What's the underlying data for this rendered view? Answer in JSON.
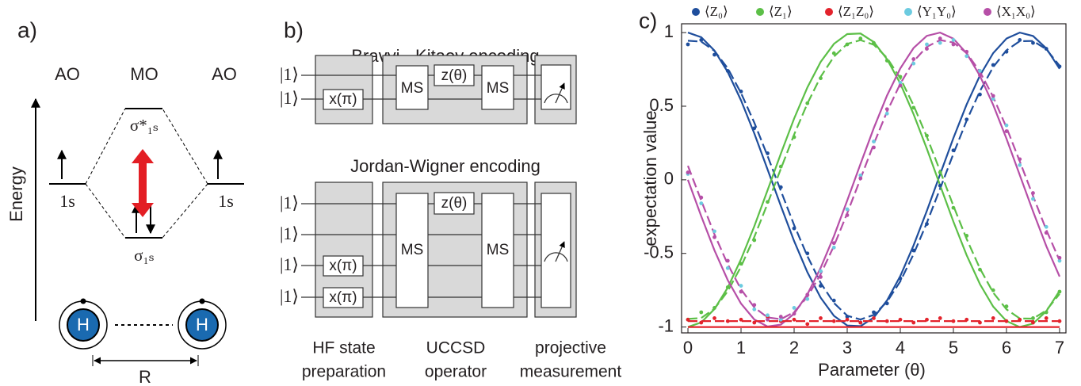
{
  "panel_a": {
    "label": "a)",
    "columns": [
      "AO",
      "MO",
      "AO"
    ],
    "axis": "Energy",
    "levels": {
      "left": "1s",
      "right": "1s",
      "antibonding": "σ*₁ₛ",
      "bonding": "σ₁ₛ"
    },
    "atoms": [
      "H",
      "H"
    ],
    "distance": "R"
  },
  "panel_b": {
    "label": "b)",
    "circuits": [
      {
        "title": "Bravyi - Kitaev encoding",
        "inputs": [
          "|1⟩",
          "|1⟩"
        ],
        "prep": [
          "x(π)"
        ],
        "gates": [
          "MS",
          "z(θ)",
          "MS"
        ]
      },
      {
        "title": "Jordan-Wigner encoding",
        "inputs": [
          "|1⟩",
          "|1⟩",
          "|1⟩",
          "|1⟩"
        ],
        "prep": [
          "x(π)",
          "x(π)"
        ],
        "gates": [
          "MS",
          "z(θ)",
          "MS"
        ]
      }
    ],
    "stages": [
      [
        "HF state",
        "preparation"
      ],
      [
        "UCCSD",
        "operator"
      ],
      [
        "projective",
        "measurement"
      ]
    ]
  },
  "chart_data": {
    "type": "scatter",
    "panel_label": "c)",
    "x_label": "Parameter (θ)",
    "y_label": "expectation value",
    "x": [
      0,
      0.25,
      0.5,
      0.75,
      1,
      1.25,
      1.5,
      1.75,
      2,
      2.25,
      2.5,
      2.75,
      3,
      3.25,
      3.5,
      3.75,
      4,
      4.25,
      4.5,
      4.75,
      5,
      5.25,
      5.5,
      5.75,
      6,
      6.25,
      6.5,
      6.75,
      7
    ],
    "series": [
      {
        "name": "⟨Z₀⟩",
        "color": "#1f4e9c",
        "values": [
          0.92,
          0.95,
          0.85,
          0.74,
          0.6,
          0.35,
          0.18,
          -0.05,
          -0.33,
          -0.5,
          -0.72,
          -0.82,
          -0.93,
          -0.97,
          -0.9,
          -0.84,
          -0.67,
          -0.48,
          -0.3,
          -0.04,
          0.2,
          0.41,
          0.58,
          0.78,
          0.87,
          0.95,
          0.93,
          0.89,
          0.77
        ]
      },
      {
        "name": "⟨Z₁⟩",
        "color": "#5cbf47",
        "values": [
          -0.95,
          -0.9,
          -0.87,
          -0.73,
          -0.57,
          -0.41,
          -0.15,
          0.09,
          0.29,
          0.52,
          0.69,
          0.86,
          0.92,
          0.96,
          0.93,
          0.81,
          0.7,
          0.49,
          0.3,
          0.05,
          -0.19,
          -0.38,
          -0.61,
          -0.75,
          -0.86,
          -0.95,
          -0.94,
          -0.9,
          -0.76
        ]
      },
      {
        "name": "⟨Z₁Z₀⟩",
        "color": "#e3232c",
        "values": [
          -0.95,
          -0.97,
          -0.94,
          -0.96,
          -0.95,
          -0.97,
          -0.93,
          -0.96,
          -0.95,
          -0.98,
          -0.94,
          -0.96,
          -0.95,
          -0.97,
          -0.94,
          -0.96,
          -0.95,
          -0.97,
          -0.95,
          -0.94,
          -0.96,
          -0.95,
          -0.97,
          -0.94,
          -0.96,
          -0.95,
          -0.97,
          -0.94,
          -0.96
        ]
      },
      {
        "name": "⟨Y₁Y₀⟩",
        "color": "#6ccbe0",
        "values": [
          0.04,
          -0.16,
          -0.35,
          -0.6,
          -0.72,
          -0.88,
          -0.92,
          -0.95,
          -0.87,
          -0.81,
          -0.62,
          -0.46,
          -0.2,
          0.03,
          0.26,
          0.45,
          0.66,
          0.79,
          0.92,
          0.93,
          0.95,
          0.84,
          0.74,
          0.55,
          0.37,
          0.1,
          -0.13,
          -0.32,
          -0.55
        ]
      },
      {
        "name": "⟨X₁X₀⟩",
        "color": "#b64fa7",
        "values": [
          0.05,
          -0.12,
          -0.39,
          -0.55,
          -0.76,
          -0.85,
          -0.95,
          -0.93,
          -0.91,
          -0.78,
          -0.66,
          -0.43,
          -0.24,
          0.01,
          0.22,
          0.48,
          0.64,
          0.82,
          0.89,
          0.96,
          0.92,
          0.87,
          0.71,
          0.57,
          0.33,
          0.14,
          -0.09,
          -0.36,
          -0.53
        ]
      }
    ],
    "lines": [
      {
        "color": "#1f4e9c",
        "style": "solid",
        "values": [
          1,
          0.969,
          0.878,
          0.732,
          0.54,
          0.315,
          0.071,
          -0.178,
          -0.416,
          -0.628,
          -0.801,
          -0.924,
          -0.99,
          -0.994,
          -0.936,
          -0.82,
          -0.654,
          -0.446,
          -0.211,
          0.037,
          0.284,
          0.512,
          0.709,
          0.861,
          0.96,
          1,
          0.977,
          0.893,
          0.754
        ]
      },
      {
        "color": "#1f4e9c",
        "style": "dashed",
        "values": [
          0.945,
          0.939,
          0.876,
          0.757,
          0.59,
          0.388,
          0.162,
          -0.075,
          -0.307,
          -0.519,
          -0.7,
          -0.837,
          -0.923,
          -0.949,
          -0.918,
          -0.829,
          -0.69,
          -0.506,
          -0.292,
          -0.06,
          0.177,
          0.402,
          0.603,
          0.766,
          0.88,
          0.942,
          0.943,
          0.887,
          0.775
        ]
      },
      {
        "color": "#5cbf47",
        "style": "solid",
        "values": [
          -1,
          -0.969,
          -0.878,
          -0.732,
          -0.54,
          -0.315,
          -0.071,
          0.178,
          0.416,
          0.628,
          0.801,
          0.924,
          0.99,
          0.994,
          0.936,
          0.82,
          0.654,
          0.446,
          0.211,
          -0.037,
          -0.284,
          -0.512,
          -0.709,
          -0.861,
          -0.96,
          -1,
          -0.977,
          -0.893,
          -0.754
        ]
      },
      {
        "color": "#5cbf47",
        "style": "dashed",
        "values": [
          -0.945,
          -0.939,
          -0.876,
          -0.757,
          -0.59,
          -0.388,
          -0.162,
          0.075,
          0.307,
          0.519,
          0.7,
          0.837,
          0.923,
          0.949,
          0.918,
          0.829,
          0.69,
          0.506,
          0.292,
          0.06,
          -0.177,
          -0.402,
          -0.603,
          -0.766,
          -0.88,
          -0.942,
          -0.943,
          -0.887,
          -0.775
        ]
      },
      {
        "color": "#b64fa7",
        "style": "solid",
        "values": [
          0,
          -0.247,
          -0.479,
          -0.682,
          -0.841,
          -0.949,
          -0.997,
          -0.984,
          -0.909,
          -0.778,
          -0.598,
          -0.382,
          -0.141,
          0.108,
          0.351,
          0.572,
          0.757,
          0.895,
          0.978,
          1,
          0.959,
          0.859,
          0.706,
          0.509,
          0.279,
          0.033,
          -0.215,
          -0.45,
          -0.657
        ]
      },
      {
        "color": "#b64fa7",
        "style": "dashed",
        "values": [
          0.095,
          -0.141,
          -0.37,
          -0.574,
          -0.744,
          -0.867,
          -0.935,
          -0.947,
          -0.899,
          -0.795,
          -0.641,
          -0.449,
          -0.227,
          0.008,
          0.243,
          0.463,
          0.653,
          0.804,
          0.904,
          0.949,
          0.933,
          0.861,
          0.734,
          0.563,
          0.355,
          0.126,
          -0.11,
          -0.34,
          -0.549
        ]
      },
      {
        "color": "#e3232c",
        "style": "solid",
        "x": [
          0,
          7
        ],
        "values": [
          -1,
          -1
        ]
      },
      {
        "color": "#e3232c",
        "style": "dashed",
        "x": [
          0,
          7
        ],
        "values": [
          -0.96,
          -0.96
        ]
      }
    ],
    "xlim": [
      -0.12,
      7.12
    ],
    "ylim": [
      -1.04,
      1.06
    ],
    "xticks": [
      0,
      1,
      2,
      3,
      4,
      5,
      6,
      7
    ],
    "yticks": [
      -1,
      -0.5,
      0,
      0.5,
      1
    ],
    "grid": false,
    "legend": "top"
  }
}
